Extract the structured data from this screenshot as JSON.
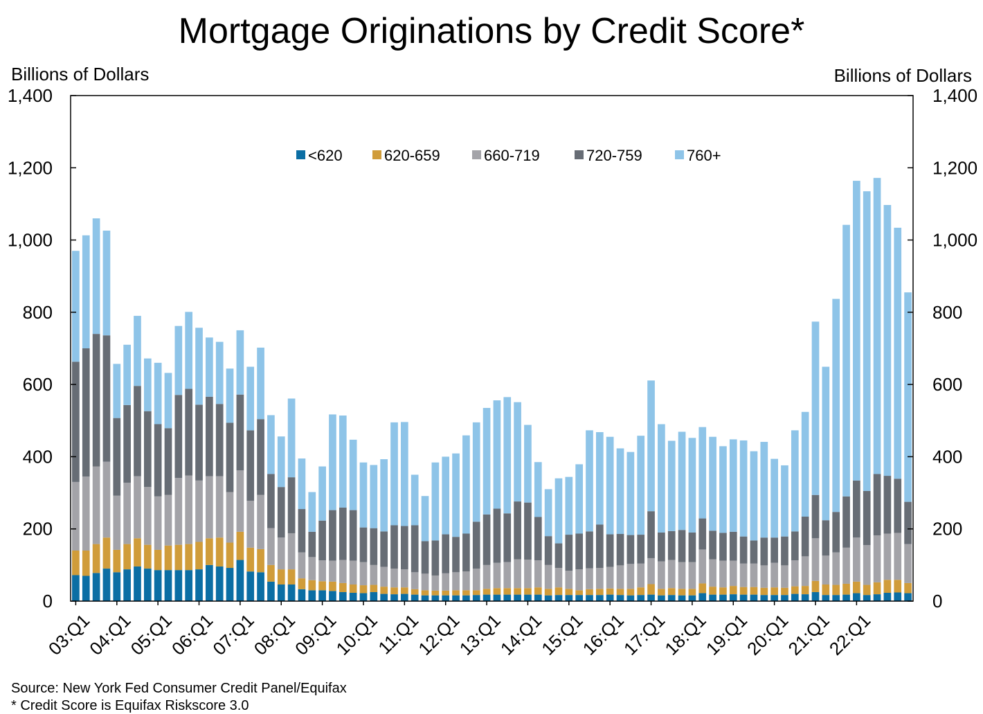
{
  "chart_data": {
    "type": "bar",
    "stacked": true,
    "title": "Mortgage Originations by Credit Score*",
    "ylabel_left": "Billions of Dollars",
    "ylabel_right": "Billions of Dollars",
    "ylim": [
      0,
      1400
    ],
    "yticks": [
      0,
      200,
      400,
      600,
      800,
      1000,
      1200,
      1400
    ],
    "ytick_labels": [
      "0",
      "200",
      "400",
      "600",
      "800",
      "1,000",
      "1,200",
      "1,400"
    ],
    "x_tick_labels": [
      "03:Q1",
      "04:Q1",
      "05:Q1",
      "06:Q1",
      "07:Q1",
      "08:Q1",
      "09:Q1",
      "10:Q1",
      "11:Q1",
      "12:Q1",
      "13:Q1",
      "14:Q1",
      "15:Q1",
      "16:Q1",
      "17:Q1",
      "18:Q1",
      "19:Q1",
      "20:Q1",
      "21:Q1",
      "22:Q1"
    ],
    "legend_position": "top-center",
    "grid": false,
    "series": [
      {
        "name": "<620",
        "color": "#0b6ea4",
        "values": [
          72,
          70,
          78,
          90,
          80,
          88,
          96,
          90,
          86,
          86,
          86,
          86,
          88,
          100,
          96,
          92,
          114,
          82,
          80,
          54,
          46,
          46,
          33,
          30,
          30,
          28,
          25,
          23,
          22,
          25,
          20,
          19,
          20,
          18,
          16,
          16,
          16,
          16,
          16,
          17,
          18,
          18,
          18,
          18,
          18,
          18,
          16,
          17,
          17,
          17,
          17,
          17,
          18,
          17,
          16,
          17,
          18,
          16,
          17,
          16,
          16,
          22,
          18,
          18,
          19,
          18,
          18,
          17,
          17,
          17,
          20,
          19,
          25,
          17,
          17,
          18,
          22,
          17,
          19,
          23,
          24,
          22
        ]
      },
      {
        "name": "620-659",
        "color": "#d09c3a",
        "values": [
          68,
          70,
          80,
          86,
          62,
          70,
          78,
          66,
          56,
          68,
          70,
          72,
          76,
          74,
          80,
          70,
          78,
          66,
          64,
          46,
          42,
          42,
          30,
          28,
          25,
          26,
          25,
          23,
          22,
          20,
          20,
          19,
          18,
          15,
          14,
          13,
          13,
          14,
          14,
          13,
          16,
          18,
          18,
          18,
          18,
          20,
          18,
          21,
          17,
          13,
          16,
          17,
          17,
          17,
          18,
          21,
          29,
          18,
          19,
          18,
          18,
          27,
          22,
          20,
          23,
          21,
          21,
          20,
          21,
          20,
          21,
          23,
          31,
          29,
          28,
          30,
          32,
          28,
          33,
          36,
          35,
          28
        ]
      },
      {
        "name": "660-719",
        "color": "#a3a3a8",
        "values": [
          190,
          205,
          215,
          210,
          150,
          170,
          172,
          160,
          148,
          140,
          185,
          190,
          170,
          172,
          170,
          140,
          170,
          130,
          150,
          102,
          88,
          100,
          72,
          64,
          58,
          58,
          64,
          66,
          64,
          55,
          55,
          52,
          50,
          47,
          46,
          42,
          48,
          50,
          52,
          60,
          66,
          70,
          72,
          80,
          79,
          75,
          66,
          54,
          50,
          58,
          58,
          58,
          60,
          65,
          69,
          66,
          72,
          76,
          78,
          74,
          74,
          94,
          76,
          74,
          70,
          65,
          65,
          62,
          68,
          62,
          72,
          82,
          118,
          80,
          90,
          100,
          122,
          110,
          130,
          128,
          130,
          108
        ]
      },
      {
        "name": "720-759",
        "color": "#676d75",
        "values": [
          333,
          355,
          367,
          350,
          215,
          215,
          250,
          210,
          200,
          185,
          230,
          240,
          210,
          220,
          200,
          192,
          210,
          195,
          210,
          150,
          140,
          155,
          120,
          70,
          110,
          140,
          145,
          140,
          96,
          102,
          98,
          120,
          120,
          130,
          90,
          97,
          108,
          98,
          105,
          130,
          140,
          150,
          135,
          160,
          158,
          120,
          80,
          68,
          100,
          99,
          102,
          120,
          90,
          87,
          80,
          80,
          130,
          80,
          80,
          89,
          82,
          86,
          79,
          77,
          80,
          75,
          64,
          77,
          70,
          80,
          80,
          110,
          120,
          98,
          112,
          142,
          158,
          150,
          170,
          160,
          150,
          117
        ]
      },
      {
        "name": "760+",
        "color": "#8ec4e8",
        "values": [
          307,
          313,
          320,
          290,
          150,
          167,
          194,
          146,
          170,
          153,
          191,
          213,
          213,
          164,
          172,
          150,
          178,
          176,
          198,
          163,
          140,
          218,
          140,
          110,
          150,
          265,
          255,
          195,
          180,
          175,
          200,
          285,
          288,
          140,
          125,
          216,
          215,
          231,
          272,
          275,
          295,
          300,
          322,
          275,
          215,
          152,
          130,
          180,
          160,
          192,
          280,
          256,
          270,
          237,
          230,
          274,
          362,
          300,
          250,
          272,
          262,
          253,
          260,
          240,
          256,
          266,
          247,
          265,
          218,
          197,
          280,
          290,
          480,
          425,
          590,
          752,
          830,
          830,
          820,
          750,
          695,
          580
        ]
      }
    ]
  },
  "footnotes": {
    "source": "Source: New York Fed Consumer Credit Panel/Equifax",
    "note": "* Credit Score is Equifax Riskscore 3.0"
  }
}
